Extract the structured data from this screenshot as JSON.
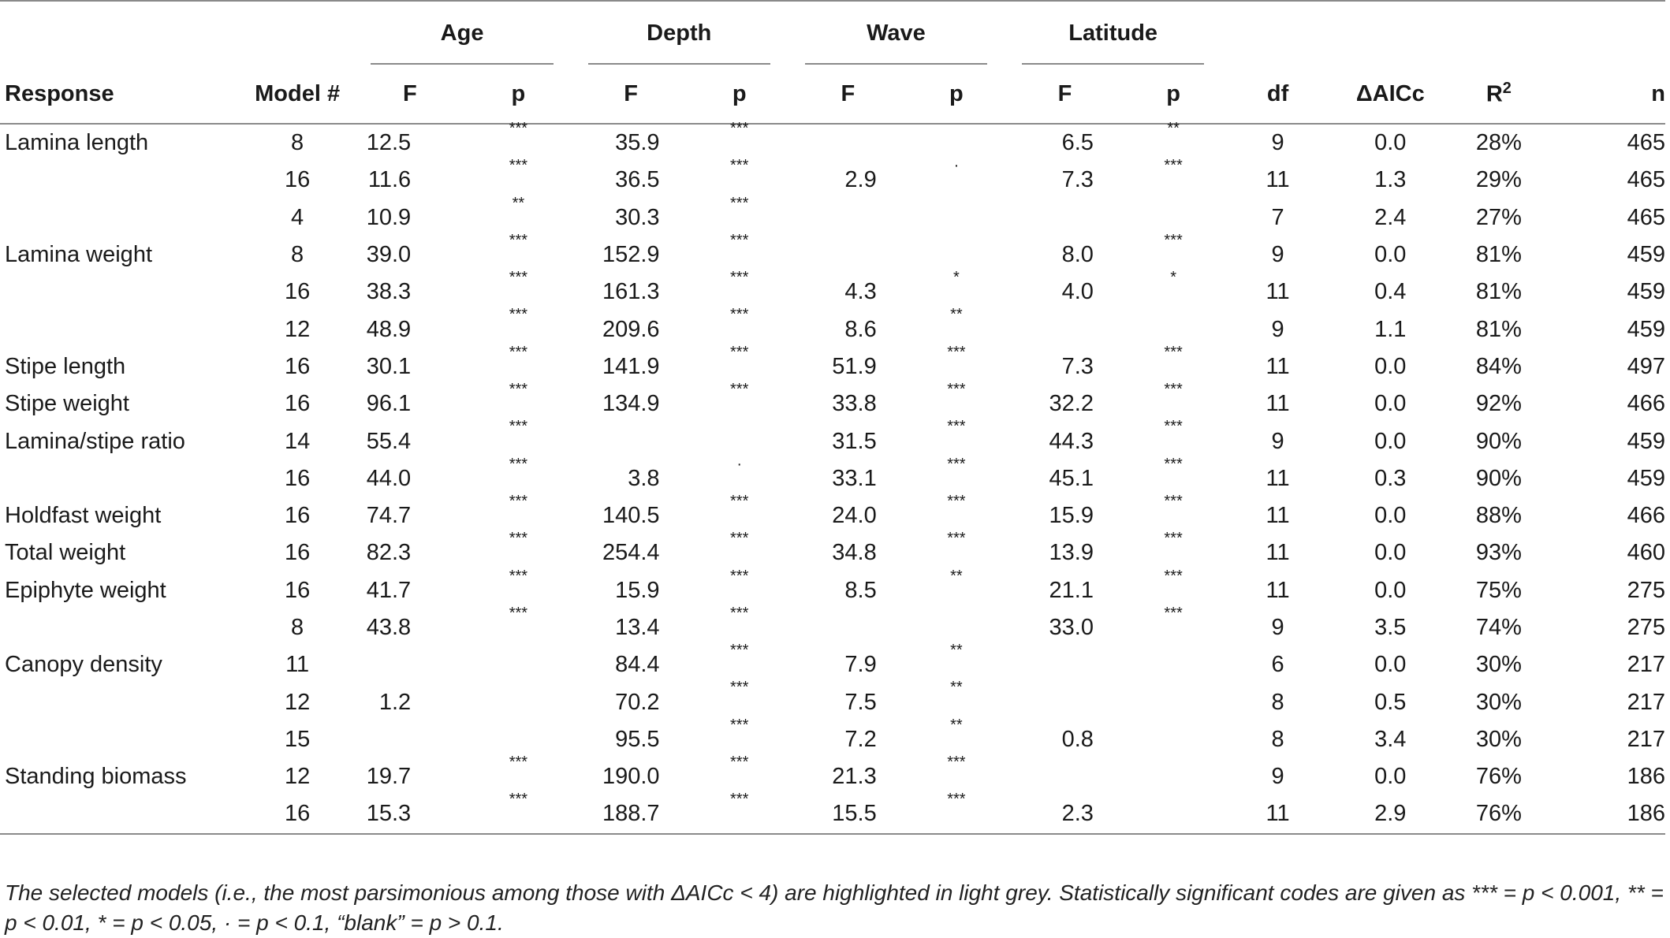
{
  "table": {
    "groups": [
      {
        "label": "Age"
      },
      {
        "label": "Depth"
      },
      {
        "label": "Wave"
      },
      {
        "label": "Latitude"
      }
    ],
    "headers": {
      "response": "Response",
      "model": "Model #",
      "age_f": "F",
      "age_p": "p",
      "depth_f": "F",
      "depth_p": "p",
      "wave_f": "F",
      "wave_p": "p",
      "lat_f": "F",
      "lat_p": "p",
      "df": "df",
      "daicc": "ΔAICc",
      "r2_base": "R",
      "r2_sup": "2",
      "n": "n"
    },
    "rows": [
      {
        "response": "Lamina length",
        "model": "8",
        "age_f": "12.5",
        "age_p": "***",
        "depth_f": "35.9",
        "depth_p": "***",
        "wave_f": "",
        "wave_p": "",
        "lat_f": "6.5",
        "lat_p": "**",
        "df": "9",
        "daicc": "0.0",
        "r2": "28%",
        "n": "465"
      },
      {
        "response": "",
        "model": "16",
        "age_f": "11.6",
        "age_p": "***",
        "depth_f": "36.5",
        "depth_p": "***",
        "wave_f": "2.9",
        "wave_p": "·",
        "lat_f": "7.3",
        "lat_p": "***",
        "df": "11",
        "daicc": "1.3",
        "r2": "29%",
        "n": "465"
      },
      {
        "response": "",
        "model": "4",
        "age_f": "10.9",
        "age_p": "**",
        "depth_f": "30.3",
        "depth_p": "***",
        "wave_f": "",
        "wave_p": "",
        "lat_f": "",
        "lat_p": "",
        "df": "7",
        "daicc": "2.4",
        "r2": "27%",
        "n": "465"
      },
      {
        "response": "Lamina weight",
        "model": "8",
        "age_f": "39.0",
        "age_p": "***",
        "depth_f": "152.9",
        "depth_p": "***",
        "wave_f": "",
        "wave_p": "",
        "lat_f": "8.0",
        "lat_p": "***",
        "df": "9",
        "daicc": "0.0",
        "r2": "81%",
        "n": "459"
      },
      {
        "response": "",
        "model": "16",
        "age_f": "38.3",
        "age_p": "***",
        "depth_f": "161.3",
        "depth_p": "***",
        "wave_f": "4.3",
        "wave_p": "*",
        "lat_f": "4.0",
        "lat_p": "*",
        "df": "11",
        "daicc": "0.4",
        "r2": "81%",
        "n": "459"
      },
      {
        "response": "",
        "model": "12",
        "age_f": "48.9",
        "age_p": "***",
        "depth_f": "209.6",
        "depth_p": "***",
        "wave_f": "8.6",
        "wave_p": "**",
        "lat_f": "",
        "lat_p": "",
        "df": "9",
        "daicc": "1.1",
        "r2": "81%",
        "n": "459"
      },
      {
        "response": "Stipe length",
        "model": "16",
        "age_f": "30.1",
        "age_p": "***",
        "depth_f": "141.9",
        "depth_p": "***",
        "wave_f": "51.9",
        "wave_p": "***",
        "lat_f": "7.3",
        "lat_p": "***",
        "df": "11",
        "daicc": "0.0",
        "r2": "84%",
        "n": "497"
      },
      {
        "response": "Stipe weight",
        "model": "16",
        "age_f": "96.1",
        "age_p": "***",
        "depth_f": "134.9",
        "depth_p": "***",
        "wave_f": "33.8",
        "wave_p": "***",
        "lat_f": "32.2",
        "lat_p": "***",
        "df": "11",
        "daicc": "0.0",
        "r2": "92%",
        "n": "466"
      },
      {
        "response": "Lamina/stipe ratio",
        "model": "14",
        "age_f": "55.4",
        "age_p": "***",
        "depth_f": "",
        "depth_p": "",
        "wave_f": "31.5",
        "wave_p": "***",
        "lat_f": "44.3",
        "lat_p": "***",
        "df": "9",
        "daicc": "0.0",
        "r2": "90%",
        "n": "459"
      },
      {
        "response": "",
        "model": "16",
        "age_f": "44.0",
        "age_p": "***",
        "depth_f": "3.8",
        "depth_p": "·",
        "wave_f": "33.1",
        "wave_p": "***",
        "lat_f": "45.1",
        "lat_p": "***",
        "df": "11",
        "daicc": "0.3",
        "r2": "90%",
        "n": "459"
      },
      {
        "response": "Holdfast weight",
        "model": "16",
        "age_f": "74.7",
        "age_p": "***",
        "depth_f": "140.5",
        "depth_p": "***",
        "wave_f": "24.0",
        "wave_p": "***",
        "lat_f": "15.9",
        "lat_p": "***",
        "df": "11",
        "daicc": "0.0",
        "r2": "88%",
        "n": "466"
      },
      {
        "response": "Total weight",
        "model": "16",
        "age_f": "82.3",
        "age_p": "***",
        "depth_f": "254.4",
        "depth_p": "***",
        "wave_f": "34.8",
        "wave_p": "***",
        "lat_f": "13.9",
        "lat_p": "***",
        "df": "11",
        "daicc": "0.0",
        "r2": "93%",
        "n": "460"
      },
      {
        "response": "Epiphyte weight",
        "model": "16",
        "age_f": "41.7",
        "age_p": "***",
        "depth_f": "15.9",
        "depth_p": "***",
        "wave_f": "8.5",
        "wave_p": "**",
        "lat_f": "21.1",
        "lat_p": "***",
        "df": "11",
        "daicc": "0.0",
        "r2": "75%",
        "n": "275"
      },
      {
        "response": "",
        "model": "8",
        "age_f": "43.8",
        "age_p": "***",
        "depth_f": "13.4",
        "depth_p": "***",
        "wave_f": "",
        "wave_p": "",
        "lat_f": "33.0",
        "lat_p": "***",
        "df": "9",
        "daicc": "3.5",
        "r2": "74%",
        "n": "275"
      },
      {
        "response": "Canopy density",
        "model": "11",
        "age_f": "",
        "age_p": "",
        "depth_f": "84.4",
        "depth_p": "***",
        "wave_f": "7.9",
        "wave_p": "**",
        "lat_f": "",
        "lat_p": "",
        "df": "6",
        "daicc": "0.0",
        "r2": "30%",
        "n": "217"
      },
      {
        "response": "",
        "model": "12",
        "age_f": "1.2",
        "age_p": "",
        "depth_f": "70.2",
        "depth_p": "***",
        "wave_f": "7.5",
        "wave_p": "**",
        "lat_f": "",
        "lat_p": "",
        "df": "8",
        "daicc": "0.5",
        "r2": "30%",
        "n": "217"
      },
      {
        "response": "",
        "model": "15",
        "age_f": "",
        "age_p": "",
        "depth_f": "95.5",
        "depth_p": "***",
        "wave_f": "7.2",
        "wave_p": "**",
        "lat_f": "0.8",
        "lat_p": "",
        "df": "8",
        "daicc": "3.4",
        "r2": "30%",
        "n": "217"
      },
      {
        "response": "Standing biomass",
        "model": "12",
        "age_f": "19.7",
        "age_p": "***",
        "depth_f": "190.0",
        "depth_p": "***",
        "wave_f": "21.3",
        "wave_p": "***",
        "lat_f": "",
        "lat_p": "",
        "df": "9",
        "daicc": "0.0",
        "r2": "76%",
        "n": "186"
      },
      {
        "response": "",
        "model": "16",
        "age_f": "15.3",
        "age_p": "***",
        "depth_f": "188.7",
        "depth_p": "***",
        "wave_f": "15.5",
        "wave_p": "***",
        "lat_f": "2.3",
        "lat_p": "",
        "df": "11",
        "daicc": "2.9",
        "r2": "76%",
        "n": "186"
      }
    ]
  },
  "footnote": "The selected models (i.e., the most parsimonious among those with ΔAICc < 4) are highlighted in light grey. Statistically significant codes are given as *** = p < 0.001, ** = p < 0.01, * = p < 0.05, · = p < 0.1, “blank” = p > 0.1."
}
